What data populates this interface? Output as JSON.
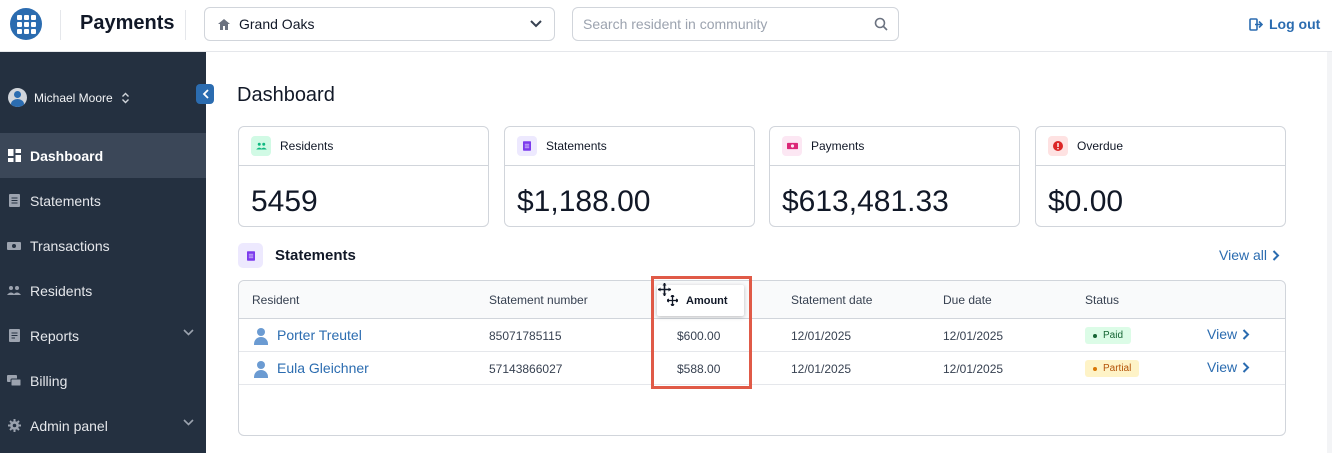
{
  "header": {
    "app_title": "Payments",
    "community": "Grand Oaks",
    "search_placeholder": "Search resident in community",
    "logout_label": "Log out",
    "accent_color": "#2b6cb0"
  },
  "sidebar": {
    "user_name": "Michael Moore",
    "items": [
      {
        "label": "Dashboard",
        "icon": "dashboard-icon",
        "active": true
      },
      {
        "label": "Statements",
        "icon": "document-icon"
      },
      {
        "label": "Transactions",
        "icon": "money-icon"
      },
      {
        "label": "Residents",
        "icon": "people-icon"
      },
      {
        "label": "Reports",
        "icon": "report-icon",
        "expandable": true
      },
      {
        "label": "Billing",
        "icon": "billing-icon"
      },
      {
        "label": "Admin panel",
        "icon": "gear-icon",
        "expandable": true
      }
    ]
  },
  "main": {
    "page_title": "Dashboard",
    "cards": [
      {
        "label": "Residents",
        "value": "5459",
        "icon": "people-icon",
        "color": "#10b981"
      },
      {
        "label": "Statements",
        "value": "$1,188.00",
        "icon": "document-icon",
        "color": "#7c3aed"
      },
      {
        "label": "Payments",
        "value": "$613,481.33",
        "icon": "money-icon",
        "color": "#db2777"
      },
      {
        "label": "Overdue",
        "value": "$0.00",
        "icon": "alert-icon",
        "color": "#dc2626"
      }
    ],
    "statements_section": {
      "title": "Statements",
      "view_all_label": "View all",
      "columns": {
        "resident": "Resident",
        "statement_number": "Statement number",
        "amount": "Amount",
        "statement_date": "Statement date",
        "due_date": "Due date",
        "status": "Status"
      },
      "rows": [
        {
          "resident": "Porter Treutel",
          "statement_number": "85071785115",
          "amount": "$600.00",
          "statement_date": "12/01/2025",
          "due_date": "12/01/2025",
          "status": "Paid",
          "action": "View"
        },
        {
          "resident": "Eula Gleichner",
          "statement_number": "57143866027",
          "amount": "$588.00",
          "statement_date": "12/01/2025",
          "due_date": "12/01/2025",
          "status": "Partial",
          "action": "View"
        }
      ]
    }
  }
}
